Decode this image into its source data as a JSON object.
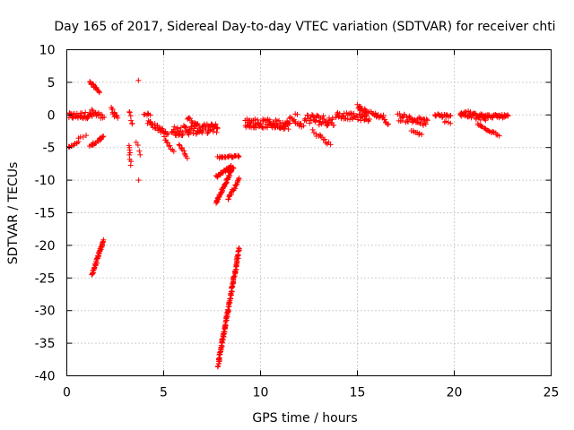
{
  "chart_data": {
    "type": "scatter",
    "title": "Day 165 of 2017, Sidereal Day-to-day VTEC variation (SDTVAR) for receiver chti",
    "xlabel": "GPS time / hours",
    "ylabel": "SDTVAR / TECUs",
    "xlim": [
      0,
      25
    ],
    "ylim": [
      -40,
      10
    ],
    "xticks": [
      "0",
      "5",
      "10",
      "15",
      "20",
      "25"
    ],
    "yticks": [
      "10",
      "5",
      "0",
      "-5",
      "-10",
      "-15",
      "-20",
      "-25",
      "-30",
      "-35",
      "-40"
    ],
    "grid": true,
    "marker": "+",
    "color": "#ff0000",
    "series": [
      {
        "name": "SDTVAR",
        "segments": [
          {
            "x0": 0.1,
            "x1": 1.3,
            "y0": -0.2,
            "y1": 0.0,
            "n": 40,
            "spread": 1.0
          },
          {
            "x0": 0.1,
            "x1": 0.6,
            "y0": -5.0,
            "y1": -4.2,
            "n": 10,
            "spread": 0.3
          },
          {
            "x0": 0.6,
            "x1": 1.0,
            "y0": -3.6,
            "y1": -3.2,
            "n": 4,
            "spread": 0.2
          },
          {
            "x0": 1.2,
            "x1": 1.7,
            "y0": 5.0,
            "y1": 3.5,
            "n": 18,
            "spread": 0.3
          },
          {
            "x0": 1.2,
            "x1": 1.9,
            "y0": -4.8,
            "y1": -3.4,
            "n": 20,
            "spread": 0.4
          },
          {
            "x0": 1.3,
            "x1": 1.9,
            "y0": -24.5,
            "y1": -19.2,
            "n": 45,
            "spread": 0.4
          },
          {
            "x0": 1.3,
            "x1": 1.9,
            "y0": 0.6,
            "y1": -0.5,
            "n": 14,
            "spread": 0.8
          },
          {
            "x0": 2.3,
            "x1": 2.6,
            "y0": 1.0,
            "y1": -0.6,
            "n": 12,
            "spread": 0.8
          },
          {
            "x0": 3.2,
            "x1": 3.3,
            "y0": -4.5,
            "y1": -7.5,
            "n": 8,
            "spread": 0.5
          },
          {
            "x0": 3.2,
            "x1": 3.4,
            "y0": 0.5,
            "y1": -1.5,
            "n": 6,
            "spread": 0.6
          },
          {
            "x0": 3.7,
            "x1": 3.7,
            "y0": 5.3,
            "y1": 5.3,
            "n": 1,
            "spread": 0.0
          },
          {
            "x0": 3.7,
            "x1": 3.7,
            "y0": -10.0,
            "y1": -10.0,
            "n": 1,
            "spread": 0.0
          },
          {
            "x0": 3.6,
            "x1": 3.8,
            "y0": -4.0,
            "y1": -6.0,
            "n": 4,
            "spread": 0.5
          },
          {
            "x0": 4.0,
            "x1": 4.3,
            "y0": 0.2,
            "y1": 0.0,
            "n": 6,
            "spread": 0.4
          },
          {
            "x0": 4.2,
            "x1": 5.2,
            "y0": -1.0,
            "y1": -3.0,
            "n": 30,
            "spread": 0.8
          },
          {
            "x0": 5.0,
            "x1": 5.5,
            "y0": -3.5,
            "y1": -5.5,
            "n": 10,
            "spread": 0.4
          },
          {
            "x0": 5.4,
            "x1": 7.8,
            "y0": -2.5,
            "y1": -2.0,
            "n": 90,
            "spread": 1.5
          },
          {
            "x0": 5.8,
            "x1": 6.2,
            "y0": -4.5,
            "y1": -6.5,
            "n": 10,
            "spread": 0.4
          },
          {
            "x0": 6.2,
            "x1": 6.8,
            "y0": -0.5,
            "y1": -1.5,
            "n": 12,
            "spread": 0.5
          },
          {
            "x0": 7.8,
            "x1": 8.9,
            "y0": -38.5,
            "y1": -20.5,
            "n": 140,
            "spread": 0.5
          },
          {
            "x0": 7.7,
            "x1": 8.6,
            "y0": -13.5,
            "y1": -8.0,
            "n": 50,
            "spread": 0.4
          },
          {
            "x0": 7.7,
            "x1": 8.5,
            "y0": -9.5,
            "y1": -7.8,
            "n": 28,
            "spread": 0.4
          },
          {
            "x0": 7.8,
            "x1": 8.9,
            "y0": -6.5,
            "y1": -6.3,
            "n": 24,
            "spread": 0.3
          },
          {
            "x0": 8.3,
            "x1": 8.9,
            "y0": -13.0,
            "y1": -9.8,
            "n": 24,
            "spread": 0.4
          },
          {
            "x0": 9.2,
            "x1": 11.5,
            "y0": -1.2,
            "y1": -1.5,
            "n": 90,
            "spread": 1.4
          },
          {
            "x0": 11.5,
            "x1": 12.2,
            "y0": -0.5,
            "y1": -1.8,
            "n": 14,
            "spread": 0.6
          },
          {
            "x0": 11.8,
            "x1": 11.9,
            "y0": 0.1,
            "y1": 0.1,
            "n": 2,
            "spread": 0.2
          },
          {
            "x0": 12.3,
            "x1": 13.8,
            "y0": -0.5,
            "y1": -1.0,
            "n": 45,
            "spread": 1.6
          },
          {
            "x0": 12.7,
            "x1": 13.6,
            "y0": -2.5,
            "y1": -4.5,
            "n": 14,
            "spread": 0.6
          },
          {
            "x0": 13.9,
            "x1": 15.6,
            "y0": 0.0,
            "y1": -0.5,
            "n": 50,
            "spread": 1.0
          },
          {
            "x0": 15.0,
            "x1": 15.6,
            "y0": 1.3,
            "y1": 0.3,
            "n": 18,
            "spread": 0.6
          },
          {
            "x0": 15.7,
            "x1": 16.4,
            "y0": 0.2,
            "y1": -0.4,
            "n": 18,
            "spread": 0.7
          },
          {
            "x0": 16.4,
            "x1": 16.6,
            "y0": -0.8,
            "y1": -1.5,
            "n": 5,
            "spread": 0.3
          },
          {
            "x0": 17.1,
            "x1": 18.6,
            "y0": -0.3,
            "y1": -1.2,
            "n": 45,
            "spread": 1.2
          },
          {
            "x0": 17.8,
            "x1": 18.3,
            "y0": -2.5,
            "y1": -3.0,
            "n": 8,
            "spread": 0.4
          },
          {
            "x0": 19.0,
            "x1": 19.8,
            "y0": 0.0,
            "y1": -0.3,
            "n": 20,
            "spread": 0.6
          },
          {
            "x0": 19.5,
            "x1": 19.8,
            "y0": -1.0,
            "y1": -1.2,
            "n": 4,
            "spread": 0.2
          },
          {
            "x0": 20.3,
            "x1": 21.6,
            "y0": 0.3,
            "y1": -0.5,
            "n": 50,
            "spread": 1.1
          },
          {
            "x0": 21.2,
            "x1": 22.3,
            "y0": -1.5,
            "y1": -3.0,
            "n": 20,
            "spread": 0.5
          },
          {
            "x0": 21.5,
            "x1": 22.8,
            "y0": -0.2,
            "y1": -0.2,
            "n": 40,
            "spread": 0.5
          }
        ]
      }
    ]
  }
}
